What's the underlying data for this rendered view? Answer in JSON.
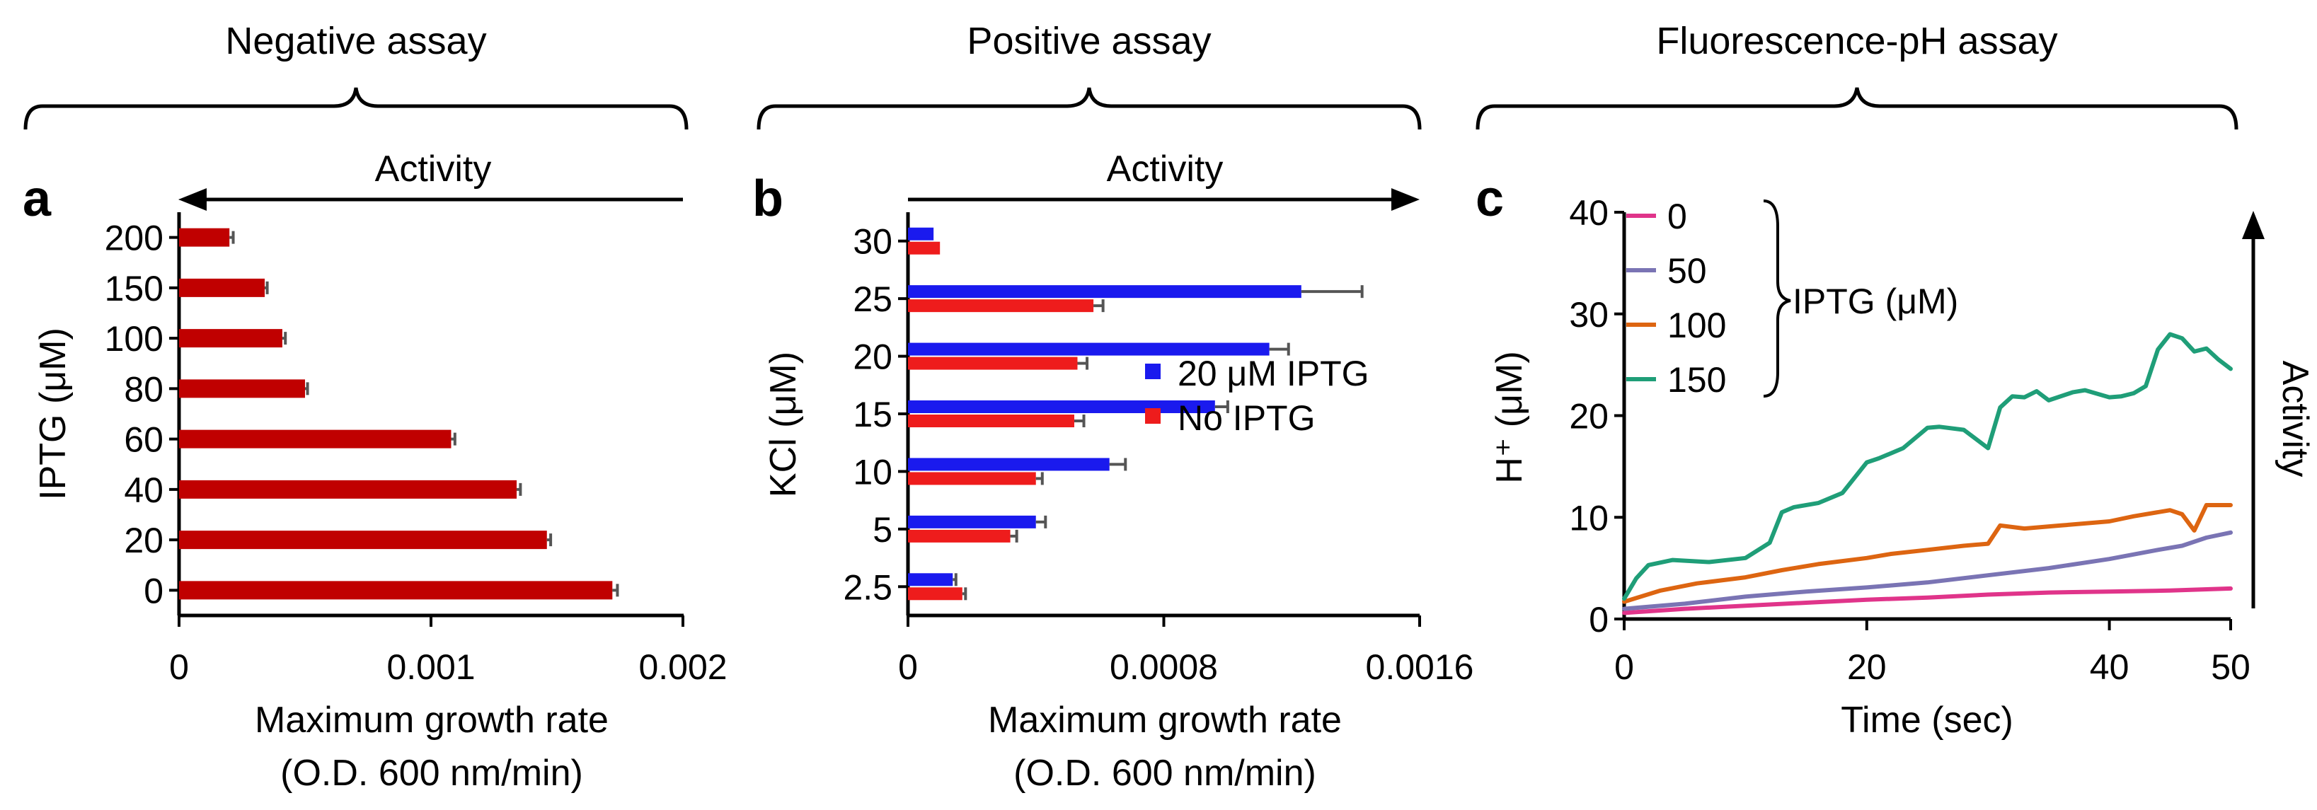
{
  "sections": {
    "negative": "Negative assay",
    "positive": "Positive assay",
    "fluorescence": "Fluorescence-pH assay"
  },
  "panel_labels": {
    "a": "a",
    "b": "b",
    "c": "c"
  },
  "activity_label": "Activity",
  "colors": {
    "panel_a_bar": "#c00000",
    "ipt_bar": "#1a1aee",
    "no_iptg_bar": "#ee1c1c",
    "error_bar": "#555555",
    "c_0": "#e0348a",
    "c_50": "#7a74b4",
    "c_100": "#dd6511",
    "c_150": "#1f9e78"
  },
  "chart_data": [
    {
      "type": "bar",
      "orientation": "horizontal",
      "panel": "a",
      "ylabel": "IPTG (μM)",
      "xlabel": "Maximum growth rate",
      "xlabel2": "(O.D. 600 nm/min)",
      "categories": [
        "200",
        "150",
        "100",
        "80",
        "60",
        "40",
        "20",
        "0"
      ],
      "values": [
        0.0002,
        0.00034,
        0.00041,
        0.0005,
        0.00108,
        0.00134,
        0.00146,
        0.00172
      ],
      "errors": [
        1.5e-05,
        1e-05,
        1.2e-05,
        1e-05,
        1.5e-05,
        1.5e-05,
        1.5e-05,
        2e-05
      ],
      "xlim": [
        0,
        0.002
      ],
      "xticks": [
        {
          "v": 0,
          "l": "0"
        },
        {
          "v": 0.001,
          "l": "0.001"
        },
        {
          "v": 0.002,
          "l": "0.002"
        }
      ],
      "activity_direction": "left"
    },
    {
      "type": "bar",
      "orientation": "horizontal",
      "panel": "b",
      "ylabel": "KCl (μM)",
      "xlabel": "Maximum growth rate",
      "xlabel2": "(O.D. 600 nm/min)",
      "categories": [
        "30",
        "25",
        "20",
        "15",
        "10",
        "5",
        "2.5"
      ],
      "series": [
        {
          "name": "20 μM IPTG",
          "values": [
            8e-05,
            0.00123,
            0.00113,
            0.00096,
            0.00063,
            0.0004,
            0.00014
          ],
          "errors": [
            0.0,
            0.00019,
            6e-05,
            4e-05,
            5e-05,
            3e-05,
            1e-05
          ]
        },
        {
          "name": "No IPTG",
          "values": [
            0.0001,
            0.00058,
            0.00053,
            0.00052,
            0.0004,
            0.00032,
            0.00017
          ],
          "errors": [
            0.0,
            3e-05,
            3e-05,
            3e-05,
            2e-05,
            2e-05,
            1e-05
          ]
        }
      ],
      "xlim": [
        0,
        0.0016
      ],
      "xticks": [
        {
          "v": 0,
          "l": "0"
        },
        {
          "v": 0.0008,
          "l": "0.0008"
        },
        {
          "v": 0.0016,
          "l": "0.0016"
        }
      ],
      "legend_position": "bottom-right",
      "activity_direction": "right"
    },
    {
      "type": "line",
      "panel": "c",
      "xlabel": "Time (sec)",
      "ylabel": "H⁺ (μM)",
      "xlim": [
        0,
        50
      ],
      "ylim": [
        0,
        40
      ],
      "xticks": [
        0,
        20,
        40
      ],
      "xtick_end": 50,
      "yticks": [
        0,
        10,
        20,
        30,
        40
      ],
      "legend_title": "IPTG (μM)",
      "legend_position": "top-left",
      "activity_direction": "up",
      "series": [
        {
          "name": "0",
          "x": [
            0,
            5,
            10,
            15,
            20,
            25,
            30,
            35,
            40,
            45,
            50
          ],
          "y": [
            0.6,
            1.0,
            1.3,
            1.6,
            1.9,
            2.1,
            2.4,
            2.6,
            2.7,
            2.8,
            3.0
          ]
        },
        {
          "name": "50",
          "x": [
            0,
            5,
            10,
            15,
            20,
            25,
            30,
            35,
            40,
            44,
            46,
            48,
            50
          ],
          "y": [
            1.0,
            1.5,
            2.2,
            2.7,
            3.1,
            3.6,
            4.3,
            5.0,
            5.9,
            6.8,
            7.2,
            8.0,
            8.5
          ]
        },
        {
          "name": "100",
          "x": [
            0,
            3,
            6,
            10,
            13,
            16,
            20,
            22,
            25,
            28,
            30,
            31,
            33,
            36,
            40,
            42,
            45,
            46,
            47,
            48,
            50
          ],
          "y": [
            1.7,
            2.8,
            3.5,
            4.1,
            4.8,
            5.4,
            6.0,
            6.4,
            6.8,
            7.2,
            7.4,
            9.2,
            8.9,
            9.2,
            9.6,
            10.1,
            10.7,
            10.3,
            8.7,
            11.2,
            11.2
          ]
        },
        {
          "name": "150",
          "x": [
            0,
            1,
            2,
            4,
            7,
            10,
            12,
            13,
            14,
            16,
            18,
            20,
            21,
            23,
            25,
            26,
            28,
            30,
            31,
            32,
            33,
            34,
            35,
            37,
            38,
            40,
            41,
            42,
            43,
            44,
            45,
            46,
            47,
            48,
            49,
            50
          ],
          "y": [
            2.0,
            4.0,
            5.3,
            5.8,
            5.6,
            6.0,
            7.5,
            10.5,
            11.0,
            11.4,
            12.4,
            15.4,
            15.8,
            16.8,
            18.8,
            18.9,
            18.6,
            16.8,
            20.8,
            21.9,
            21.8,
            22.4,
            21.5,
            22.3,
            22.5,
            21.8,
            21.9,
            22.2,
            22.9,
            26.5,
            28.0,
            27.6,
            26.3,
            26.6,
            25.5,
            24.6
          ]
        }
      ]
    }
  ]
}
